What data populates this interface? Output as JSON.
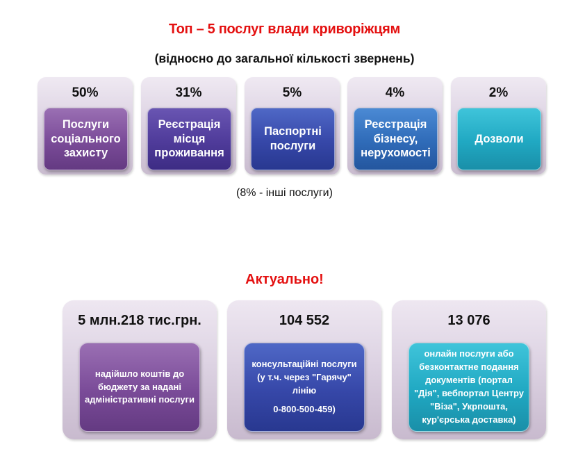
{
  "header": {
    "title": "Топ – 5 послуг влади криворіжцям",
    "subtitle": "(відносно до загальної кількості звернень)"
  },
  "top_services": [
    {
      "percent": "50%",
      "label": "Послуги соціального захисту",
      "color": "#7a4b98"
    },
    {
      "percent": "31%",
      "label": "Реєстрація місця проживання",
      "color": "#4f3b9a"
    },
    {
      "percent": "5%",
      "label": "Паспортні послуги",
      "color": "#3647a8"
    },
    {
      "percent": "4%",
      "label": "Реєстрація бізнесу, нерухомості",
      "color": "#2f6bb8"
    },
    {
      "percent": "2%",
      "label": "Дозволи",
      "color": "#20a8c2"
    }
  ],
  "other_note": "(8% - інші послуги)",
  "actual": {
    "heading": "Актуально!",
    "items": [
      {
        "value": "5 млн.218 тис.грн.",
        "text": "надійшло коштів до бюджету за надані адміністративні послуги",
        "color": "#7a4b98"
      },
      {
        "value": "104 552",
        "text": "консультаційні послуги (у т.ч. через \"Гарячу\" лінію",
        "phone": "0-800-500-459)",
        "color": "#3647a8"
      },
      {
        "value": "13 076",
        "text": "онлайн послуги або безконтактне подання документів (портал \"Дія\", вебпортал Центру \"Віза\", Укрпошта, кур'єрська доставка)",
        "color": "#20a8c2"
      }
    ]
  }
}
